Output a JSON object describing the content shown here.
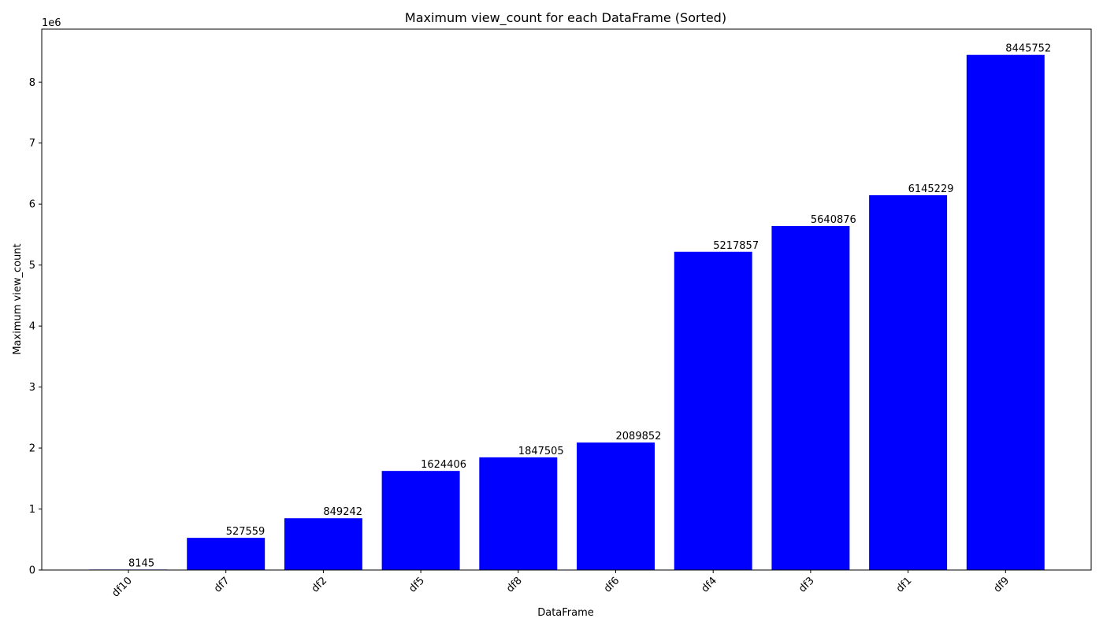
{
  "chart_data": {
    "type": "bar",
    "title": "Maximum view_count for each DataFrame (Sorted)",
    "xlabel": "DataFrame",
    "ylabel": "Maximum view_count",
    "y_offset_label": "1e6",
    "categories": [
      "df10",
      "df7",
      "df2",
      "df5",
      "df8",
      "df6",
      "df4",
      "df3",
      "df1",
      "df9"
    ],
    "values": [
      8145,
      527559,
      849242,
      1624406,
      1847505,
      2089852,
      5217857,
      5640876,
      6145229,
      8445752
    ],
    "data_labels": [
      "8145",
      "527559",
      "849242",
      "1624406",
      "1847505",
      "2089852",
      "5217857",
      "5640876",
      "6145229",
      "8445752"
    ],
    "yticks": [
      0,
      1000000,
      2000000,
      3000000,
      4000000,
      5000000,
      6000000,
      7000000,
      8000000
    ],
    "ytick_labels": [
      "0",
      "1",
      "2",
      "3",
      "4",
      "5",
      "6",
      "7",
      "8"
    ],
    "ylim": [
      0,
      8868040
    ],
    "bar_color": "#0000ff",
    "grid": false,
    "legend": "none",
    "xtick_rotation_deg": 45
  }
}
